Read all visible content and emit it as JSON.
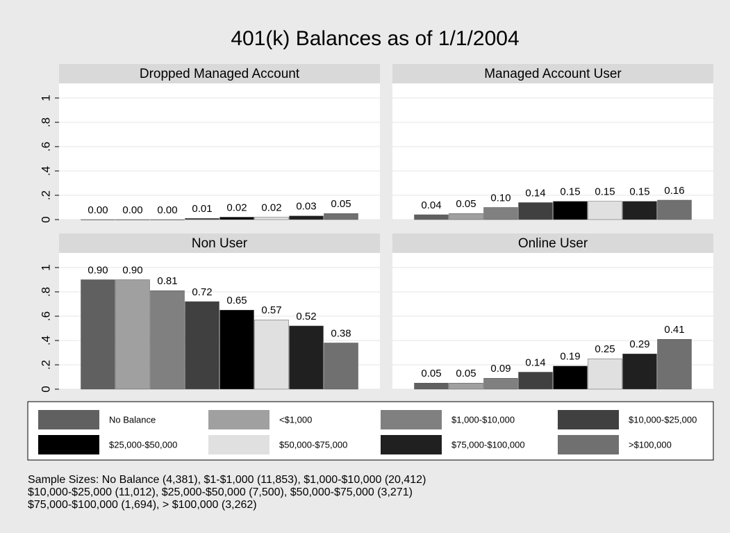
{
  "title": "401(k) Balances as of 1/1/2004",
  "legend": [
    {
      "name": "No Balance",
      "color": "#606060"
    },
    {
      "name": "<$1,000",
      "color": "#a0a0a0"
    },
    {
      "name": "$1,000-$10,000",
      "color": "#808080"
    },
    {
      "name": "$10,000-$25,000",
      "color": "#404040"
    },
    {
      "name": "$25,000-$50,000",
      "color": "#000000"
    },
    {
      "name": "$50,000-$75,000",
      "color": "#e0e0e0"
    },
    {
      "name": "$75,000-$100,000",
      "color": "#202020"
    },
    {
      "name": ">$100,000",
      "color": "#707070"
    }
  ],
  "note": [
    "Sample Sizes: No Balance (4,381), $1-$1,000 (11,853), $1,000-$10,000 (20,412)",
    "$10,000-$25,000 (11,012), $25,000-$50,000 (7,500), $50,000-$75,000 (3,271)",
    "$75,000-$100,000 (1,694), > $100,000 (3,262)"
  ],
  "chart_data": [
    {
      "type": "bar",
      "title": "Dropped Managed Account",
      "values": [
        0,
        0,
        0,
        0.01,
        0.02,
        0.02,
        0.03,
        0.05
      ],
      "value_labels": [
        "0.00",
        "0.00",
        "0.00",
        "0.01",
        "0.02",
        "0.02",
        "0.03",
        "0.05"
      ],
      "ylim": [
        0,
        1.12
      ],
      "yticks": [
        0,
        {
          "value": 0.2,
          "label": ".2"
        },
        {
          "value": 0.4,
          "label": ".4"
        },
        {
          "value": 0.6,
          "label": ".6"
        },
        {
          "value": 0.8,
          "label": ".8"
        },
        1
      ],
      "grid": true
    },
    {
      "type": "bar",
      "title": "Managed Account User",
      "values": [
        0.04,
        0.05,
        0.1,
        0.14,
        0.15,
        0.15,
        0.15,
        0.16
      ],
      "value_labels": [
        "0.04",
        "0.05",
        "0.10",
        "0.14",
        "0.15",
        "0.15",
        "0.15",
        "0.16"
      ],
      "ylim": [
        0,
        1.12
      ],
      "yticks": [
        0,
        {
          "value": 0.2,
          "label": ".2"
        },
        {
          "value": 0.4,
          "label": ".4"
        },
        {
          "value": 0.6,
          "label": ".6"
        },
        {
          "value": 0.8,
          "label": ".8"
        },
        1
      ],
      "grid": true
    },
    {
      "type": "bar",
      "title": "Non User",
      "values": [
        0.9,
        0.9,
        0.81,
        0.72,
        0.65,
        0.57,
        0.52,
        0.38
      ],
      "value_labels": [
        "0.90",
        "0.90",
        "0.81",
        "0.72",
        "0.65",
        "0.57",
        "0.52",
        "0.38"
      ],
      "ylim": [
        0,
        1.12
      ],
      "yticks": [
        0,
        {
          "value": 0.2,
          "label": ".2"
        },
        {
          "value": 0.4,
          "label": ".4"
        },
        {
          "value": 0.6,
          "label": ".6"
        },
        {
          "value": 0.8,
          "label": ".8"
        },
        1
      ],
      "grid": true
    },
    {
      "type": "bar",
      "title": "Online User",
      "values": [
        0.05,
        0.05,
        0.09,
        0.14,
        0.19,
        0.25,
        0.29,
        0.41
      ],
      "value_labels": [
        "0.05",
        "0.05",
        "0.09",
        "0.14",
        "0.19",
        "0.25",
        "0.29",
        "0.41"
      ],
      "ylim": [
        0,
        1.12
      ],
      "yticks": [
        0,
        {
          "value": 0.2,
          "label": ".2"
        },
        {
          "value": 0.4,
          "label": ".4"
        },
        {
          "value": 0.6,
          "label": ".6"
        },
        {
          "value": 0.8,
          "label": ".8"
        },
        1
      ],
      "grid": true
    }
  ]
}
